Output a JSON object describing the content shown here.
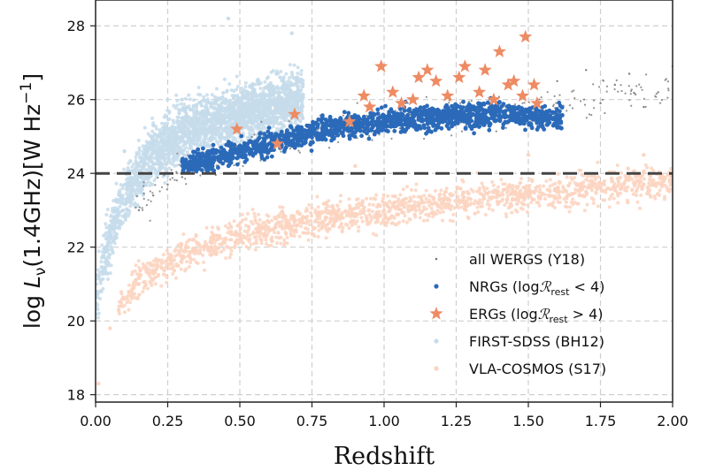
{
  "chart_data": {
    "type": "scatter",
    "xlabel": "Redshift",
    "ylabel": "log L_ν(1.4GHz)[W Hz^-1]",
    "xlim": [
      0.0,
      2.0
    ],
    "ylim": [
      17.8,
      28.7
    ],
    "xticks": [
      "0.00",
      "0.25",
      "0.50",
      "0.75",
      "1.00",
      "1.25",
      "1.50",
      "1.75",
      "2.00"
    ],
    "xtick_values": [
      0,
      0.25,
      0.5,
      0.75,
      1.0,
      1.25,
      1.5,
      1.75,
      2.0
    ],
    "yticks": [
      "18",
      "20",
      "22",
      "24",
      "26",
      "28"
    ],
    "ytick_values": [
      18,
      20,
      22,
      24,
      26,
      28
    ],
    "grid": true,
    "legend_position": "lower-right",
    "threshold_line": {
      "y": 24,
      "style": "dashed",
      "color": "#444444"
    },
    "series": [
      {
        "name": "FIRST-SDSS (BH12)",
        "marker": "dot",
        "color": "#c6dceb",
        "points": [
          [
            0.02,
            20.8
          ],
          [
            0.04,
            21.6
          ],
          [
            0.05,
            22.3
          ],
          [
            0.07,
            22.8
          ],
          [
            0.09,
            23.2
          ],
          [
            0.12,
            23.8
          ],
          [
            0.15,
            24.2
          ],
          [
            0.18,
            24.6
          ],
          [
            0.22,
            25.0
          ],
          [
            0.25,
            25.2
          ],
          [
            0.3,
            25.5
          ],
          [
            0.35,
            25.7
          ],
          [
            0.4,
            25.8
          ],
          [
            0.45,
            25.9
          ],
          [
            0.5,
            26.0
          ],
          [
            0.55,
            26.2
          ],
          [
            0.6,
            26.4
          ],
          [
            0.65,
            26.5
          ],
          [
            0.7,
            26.6
          ],
          [
            0.46,
            28.2
          ],
          [
            0.68,
            27.8
          ],
          [
            0.3,
            26.0
          ],
          [
            0.2,
            25.3
          ],
          [
            0.1,
            24.6
          ],
          [
            0.6,
            25.5
          ]
        ]
      },
      {
        "name": "VLA-COSMOS (S17)",
        "marker": "dot",
        "color": "#fbd3c0",
        "points": [
          [
            0.01,
            18.3
          ],
          [
            0.05,
            19.8
          ],
          [
            0.08,
            20.3
          ],
          [
            0.1,
            20.6
          ],
          [
            0.15,
            21.0
          ],
          [
            0.2,
            21.3
          ],
          [
            0.3,
            21.7
          ],
          [
            0.4,
            22.0
          ],
          [
            0.5,
            22.3
          ],
          [
            0.6,
            22.5
          ],
          [
            0.7,
            22.6
          ],
          [
            0.8,
            22.8
          ],
          [
            0.9,
            22.9
          ],
          [
            1.0,
            23.0
          ],
          [
            1.1,
            23.1
          ],
          [
            1.2,
            23.2
          ],
          [
            1.3,
            23.3
          ],
          [
            1.4,
            23.4
          ],
          [
            1.5,
            23.4
          ],
          [
            1.6,
            23.5
          ],
          [
            1.7,
            23.5
          ],
          [
            1.8,
            23.6
          ],
          [
            1.9,
            23.7
          ],
          [
            2.0,
            23.8
          ],
          [
            1.5,
            24.5
          ],
          [
            1.9,
            24.5
          ],
          [
            0.9,
            24.2
          ]
        ]
      },
      {
        "name": "all WERGS (Y18)",
        "marker": "small-dot",
        "color": "#777777",
        "points": [
          [
            0.15,
            23.0
          ],
          [
            0.2,
            23.4
          ],
          [
            0.25,
            23.7
          ],
          [
            0.3,
            23.9
          ],
          [
            0.35,
            24.1
          ],
          [
            0.4,
            24.2
          ],
          [
            1.6,
            26.5
          ],
          [
            1.7,
            26.8
          ],
          [
            1.75,
            25.9
          ],
          [
            1.8,
            26.4
          ],
          [
            1.85,
            26.7
          ],
          [
            1.9,
            25.8
          ],
          [
            1.95,
            26.2
          ],
          [
            2.0,
            26.9
          ]
        ]
      },
      {
        "name": "NRGs (logℛ_rest < 4)",
        "marker": "dot",
        "color": "#2b6ab9",
        "points": [
          [
            0.3,
            24.2
          ],
          [
            0.35,
            24.3
          ],
          [
            0.4,
            24.4
          ],
          [
            0.45,
            24.5
          ],
          [
            0.5,
            24.6
          ],
          [
            0.55,
            24.7
          ],
          [
            0.6,
            24.8
          ],
          [
            0.65,
            24.9
          ],
          [
            0.7,
            25.0
          ],
          [
            0.75,
            25.1
          ],
          [
            0.8,
            25.2
          ],
          [
            0.85,
            25.25
          ],
          [
            0.9,
            25.3
          ],
          [
            0.95,
            25.35
          ],
          [
            1.0,
            25.4
          ],
          [
            1.05,
            25.45
          ],
          [
            1.1,
            25.5
          ],
          [
            1.15,
            25.5
          ],
          [
            1.2,
            25.55
          ],
          [
            1.25,
            25.6
          ],
          [
            1.3,
            25.6
          ],
          [
            1.35,
            25.6
          ],
          [
            1.4,
            25.65
          ],
          [
            1.45,
            25.6
          ],
          [
            1.5,
            25.55
          ],
          [
            1.55,
            25.5
          ],
          [
            1.6,
            25.5
          ]
        ]
      },
      {
        "name": "ERGs (logℛ_rest > 4)",
        "marker": "star",
        "color": "#ee8b63",
        "points": [
          [
            0.49,
            25.2
          ],
          [
            0.63,
            24.8
          ],
          [
            0.69,
            25.6
          ],
          [
            0.88,
            25.4
          ],
          [
            0.93,
            26.1
          ],
          [
            0.95,
            25.8
          ],
          [
            0.99,
            26.9
          ],
          [
            1.03,
            26.2
          ],
          [
            1.06,
            25.9
          ],
          [
            1.1,
            26.0
          ],
          [
            1.12,
            26.6
          ],
          [
            1.15,
            26.8
          ],
          [
            1.18,
            26.5
          ],
          [
            1.22,
            26.1
          ],
          [
            1.26,
            26.6
          ],
          [
            1.28,
            26.9
          ],
          [
            1.33,
            26.2
          ],
          [
            1.35,
            26.8
          ],
          [
            1.38,
            26.0
          ],
          [
            1.4,
            27.3
          ],
          [
            1.43,
            26.4
          ],
          [
            1.45,
            26.5
          ],
          [
            1.48,
            26.1
          ],
          [
            1.49,
            27.7
          ],
          [
            1.52,
            26.4
          ],
          [
            1.53,
            25.9
          ]
        ]
      }
    ]
  }
}
